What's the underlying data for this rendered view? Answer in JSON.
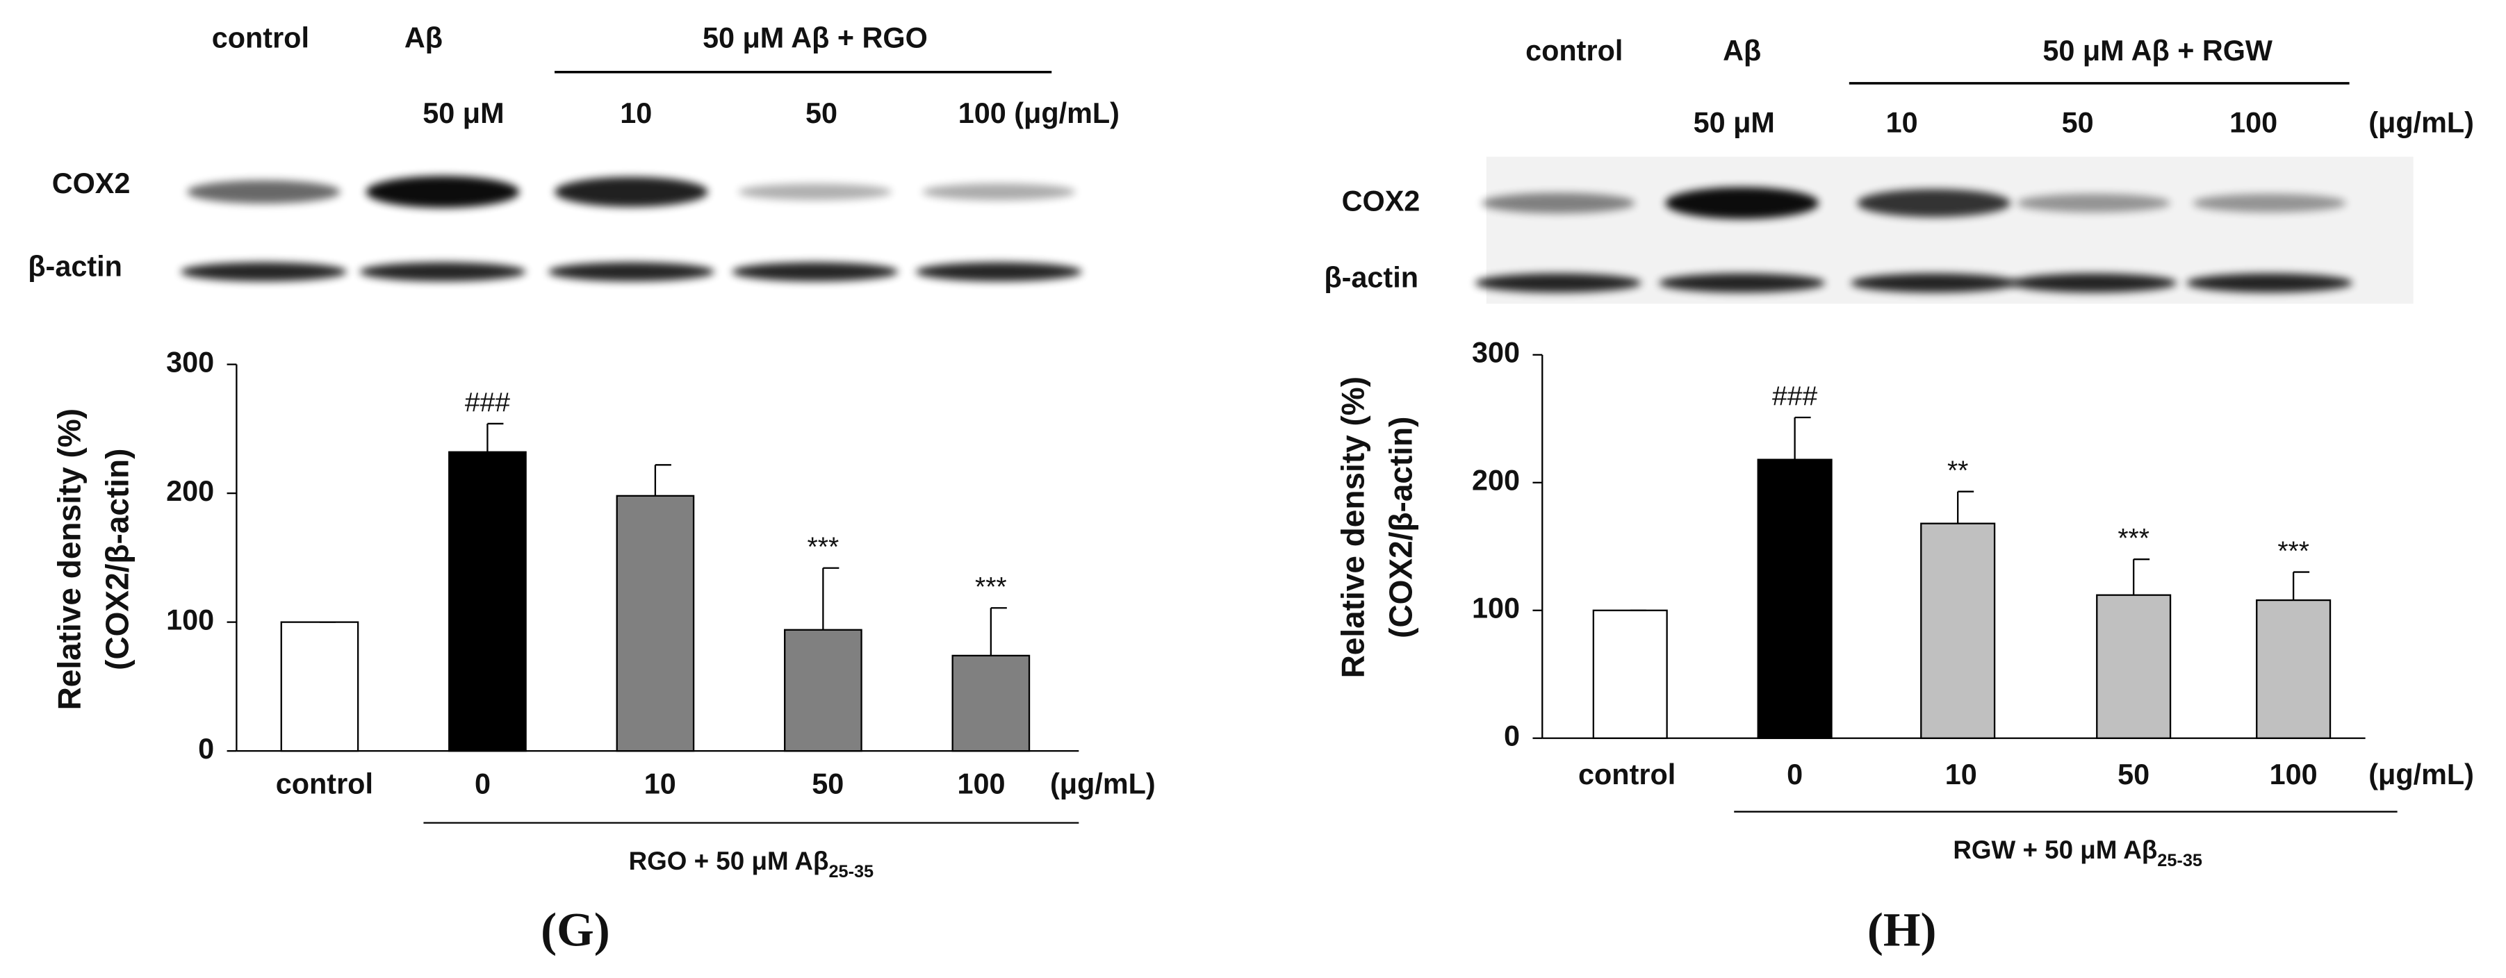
{
  "chart_data": [
    {
      "type": "bar",
      "panel_label": "(G)",
      "blot": {
        "lane_labels": [
          "control",
          "Aβ"
        ],
        "group_label": "50 μM Aβ + RGO",
        "dose_labels": [
          "50 μM",
          "10",
          "50",
          "100 (μg/mL)"
        ],
        "row_labels": [
          "COX2",
          "β-actin"
        ]
      },
      "ylabel": [
        "Relative density (%)",
        "(COX2/β-actin)"
      ],
      "categories": [
        "control",
        "0",
        "10",
        "50",
        "100"
      ],
      "xunit": "(μg/mL)",
      "xgroup_label": "RGO + 50 μM Aβ",
      "xgroup_subscript": "25-35",
      "values": [
        100,
        232,
        198,
        94,
        74
      ],
      "errors": [
        0,
        22,
        24,
        48,
        37
      ],
      "annotations": [
        null,
        "###",
        null,
        "***",
        "***"
      ],
      "colors": [
        "#ffffff",
        "#000000",
        "#808080",
        "#808080",
        "#808080"
      ],
      "ylim": [
        0,
        300
      ],
      "yticks": [
        0,
        100,
        200,
        300
      ]
    },
    {
      "type": "bar",
      "panel_label": "(H)",
      "blot": {
        "lane_labels": [
          "control",
          "Aβ"
        ],
        "group_label": "50 μM Aβ + RGW",
        "dose_labels": [
          "50 μM",
          "10",
          "50",
          "100",
          "(μg/mL)"
        ],
        "row_labels": [
          "COX2",
          "β-actin"
        ]
      },
      "ylabel": [
        "Relative density (%)",
        "(COX2/β-actin)"
      ],
      "categories": [
        "control",
        "0",
        "10",
        "50",
        "100"
      ],
      "xunit": "(μg/mL)",
      "xgroup_label": "RGW + 50 μM Aβ",
      "xgroup_subscript": "25-35",
      "values": [
        100,
        218,
        168,
        112,
        108
      ],
      "errors": [
        0,
        33,
        25,
        28,
        22
      ],
      "annotations": [
        null,
        "###",
        "**",
        "***",
        "***"
      ],
      "colors": [
        "#ffffff",
        "#000000",
        "#c0c0c0",
        "#c0c0c0",
        "#c0c0c0"
      ],
      "ylim": [
        0,
        300
      ],
      "yticks": [
        0,
        100,
        200,
        300
      ]
    }
  ]
}
